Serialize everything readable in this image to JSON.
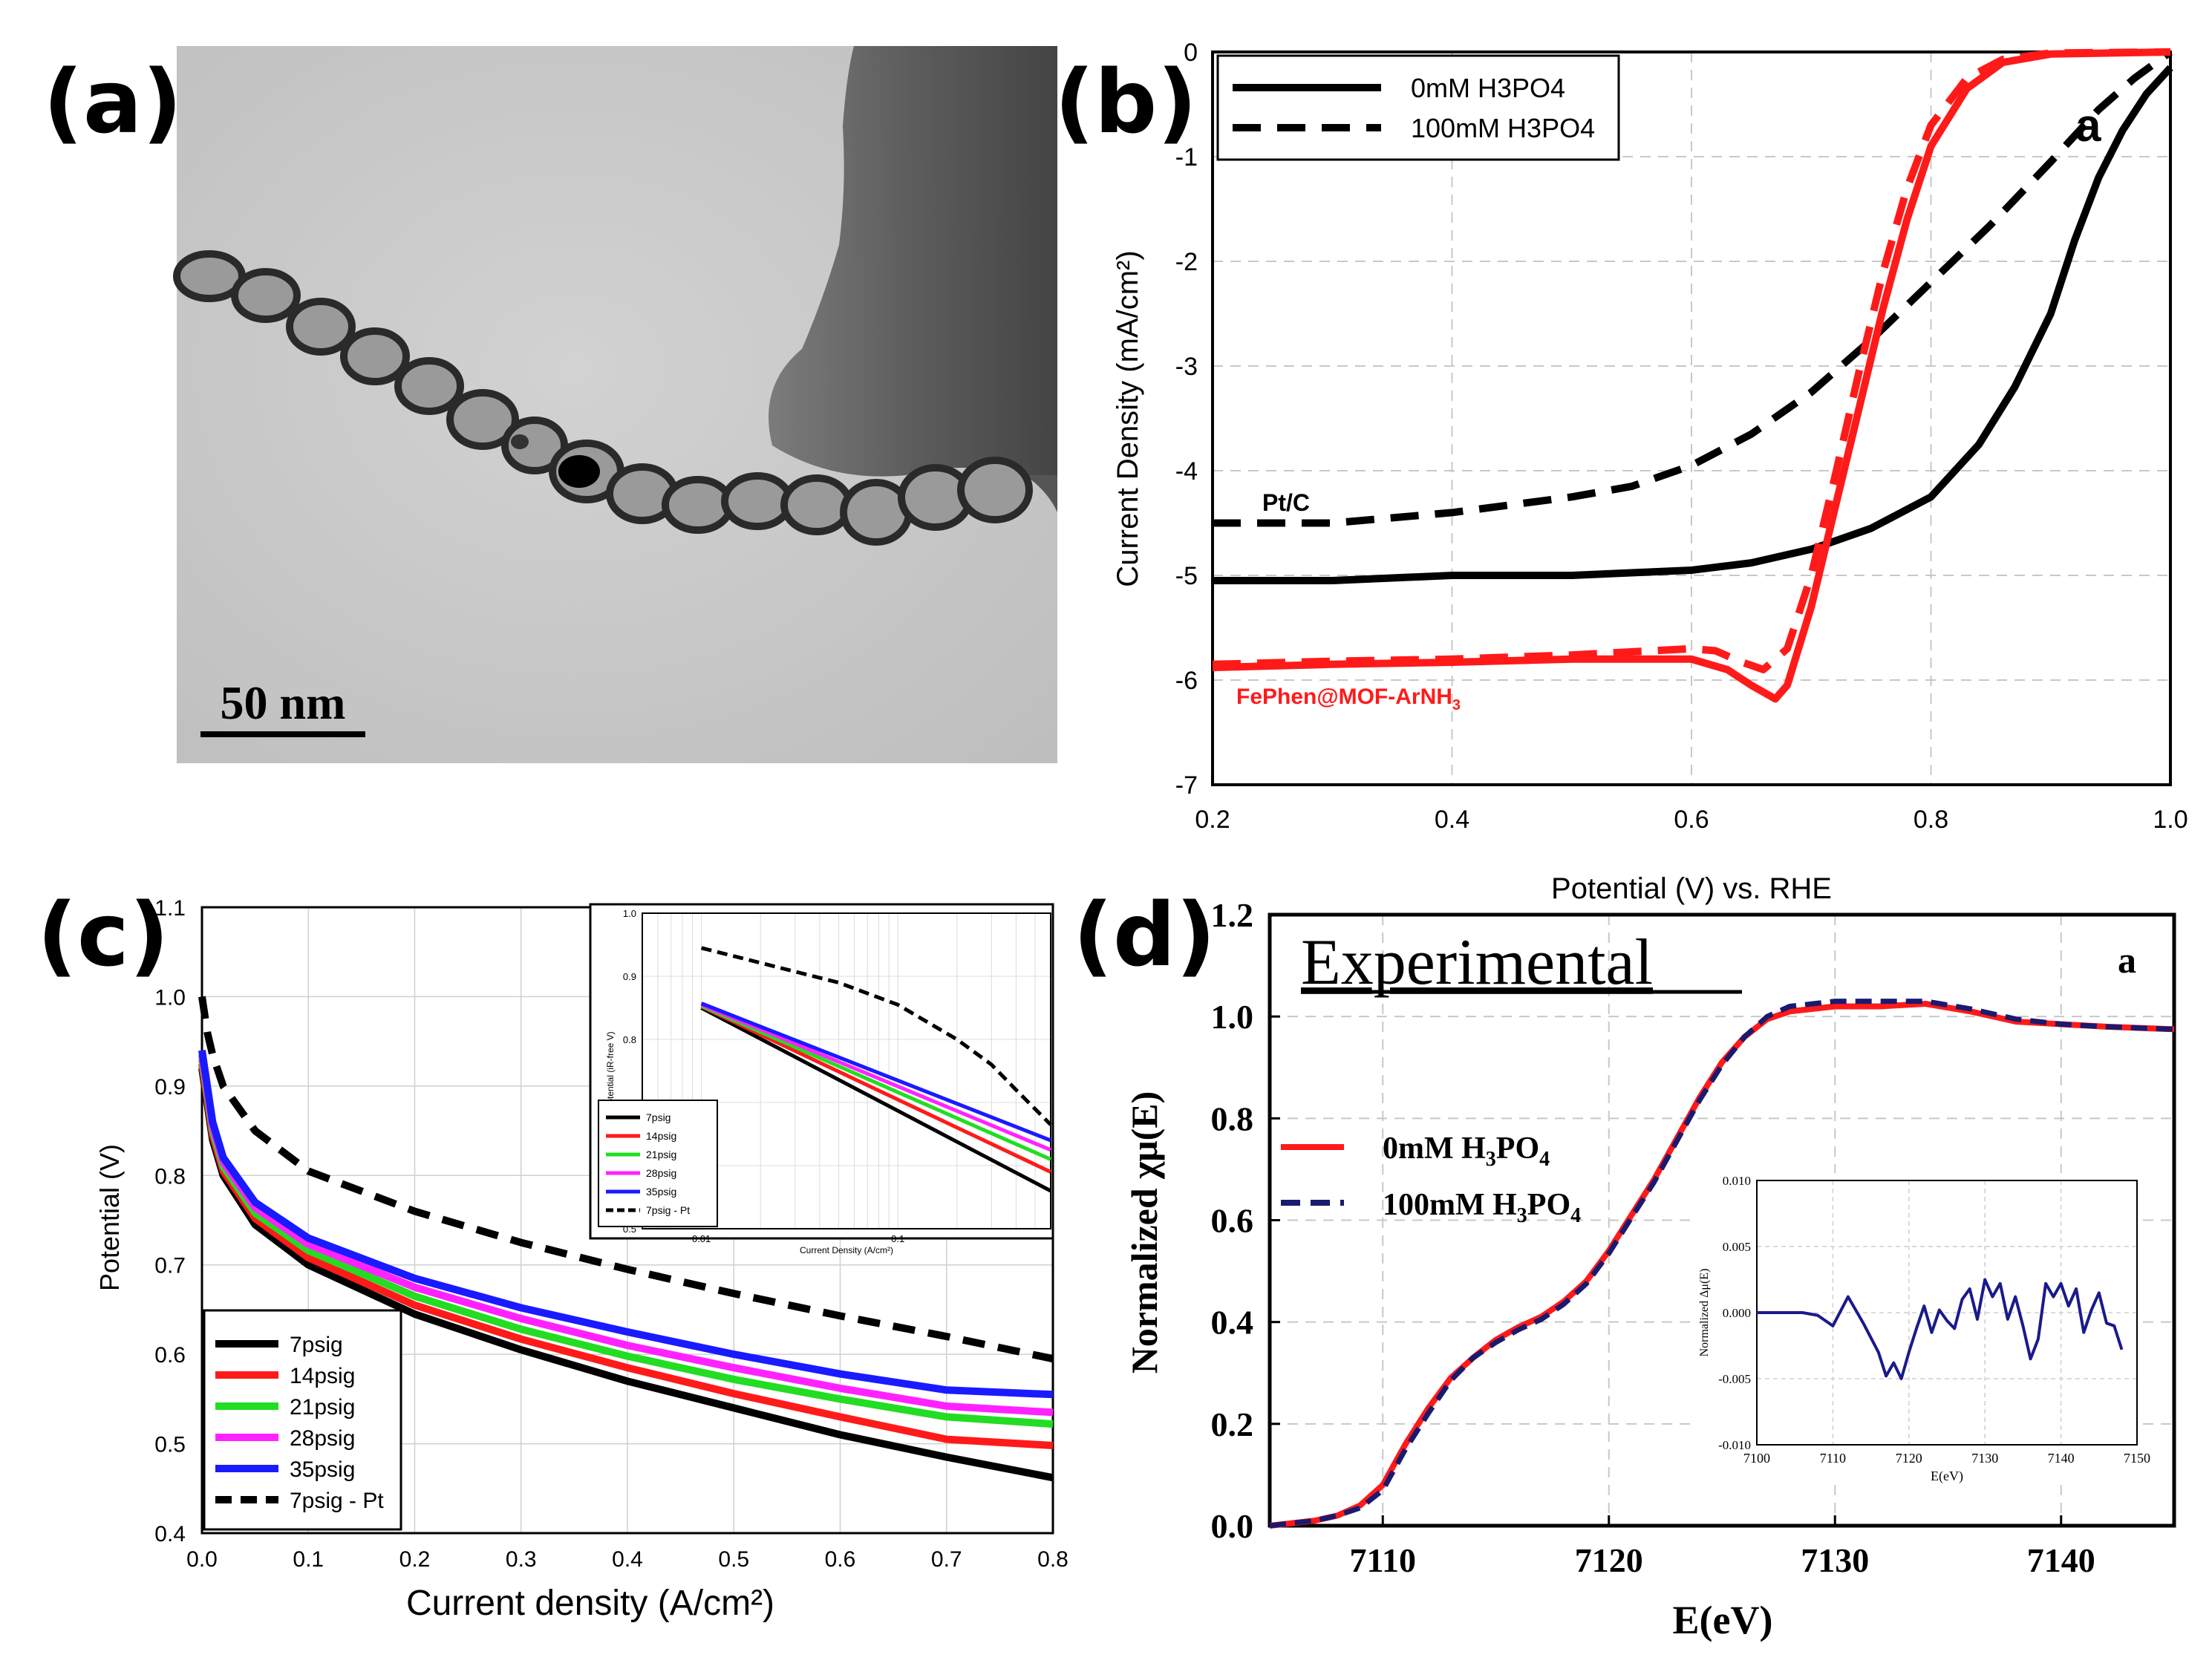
{
  "panel_labels": [
    "(a)",
    "(b)",
    "(c)",
    "(d)"
  ],
  "tem": {
    "scale_bar_label": "50 nm"
  },
  "chart_data": [
    {
      "id": "b",
      "type": "line",
      "xlabel": "Potential (V) vs. RHE",
      "ylabel": "Current Density (mA/cm²)",
      "xlim": [
        0.2,
        1.0
      ],
      "ylim": [
        -7,
        0
      ],
      "xticks": [
        "0.2",
        "0.4",
        "0.6",
        "0.8",
        "1.0"
      ],
      "yticks": [
        "0",
        "-1",
        "-2",
        "-3",
        "-4",
        "-5",
        "-6",
        "-7"
      ],
      "legend": [
        {
          "label": "0mM H3PO4",
          "style": "solid"
        },
        {
          "label": "100mM H3PO4",
          "style": "dashed"
        }
      ],
      "annotations": {
        "corner": "a",
        "ptc": "Pt/C",
        "fephen": "FePhen@MOF-ArNH",
        "fephen_sub": "3"
      },
      "colors": {
        "ptc": "#000000",
        "fephen": "#ff1a1a"
      },
      "series": [
        {
          "name": "Pt/C 0mM H3PO4",
          "color": "#000000",
          "style": "solid",
          "x": [
            0.2,
            0.3,
            0.4,
            0.5,
            0.6,
            0.65,
            0.7,
            0.75,
            0.8,
            0.84,
            0.87,
            0.9,
            0.92,
            0.94,
            0.96,
            0.98,
            1.0
          ],
          "y": [
            -5.05,
            -5.05,
            -5.0,
            -5.0,
            -4.95,
            -4.88,
            -4.75,
            -4.55,
            -4.25,
            -3.75,
            -3.2,
            -2.5,
            -1.8,
            -1.2,
            -0.75,
            -0.4,
            -0.15
          ]
        },
        {
          "name": "Pt/C 100mM H3PO4",
          "color": "#000000",
          "style": "dashed",
          "x": [
            0.2,
            0.3,
            0.4,
            0.5,
            0.55,
            0.6,
            0.65,
            0.7,
            0.75,
            0.8,
            0.85,
            0.9,
            0.94,
            0.97,
            1.0
          ],
          "y": [
            -4.5,
            -4.5,
            -4.4,
            -4.25,
            -4.15,
            -3.95,
            -3.65,
            -3.25,
            -2.75,
            -2.2,
            -1.65,
            -1.05,
            -0.55,
            -0.25,
            0.0
          ]
        },
        {
          "name": "FePhen@MOF-ArNH3 0mM H3PO4",
          "color": "#ff1a1a",
          "style": "solid",
          "x": [
            0.2,
            0.3,
            0.4,
            0.5,
            0.6,
            0.63,
            0.65,
            0.67,
            0.68,
            0.7,
            0.72,
            0.74,
            0.76,
            0.78,
            0.8,
            0.83,
            0.86,
            0.9,
            1.0
          ],
          "y": [
            -5.88,
            -5.85,
            -5.83,
            -5.8,
            -5.8,
            -5.9,
            -6.05,
            -6.18,
            -6.05,
            -5.3,
            -4.35,
            -3.4,
            -2.45,
            -1.6,
            -0.9,
            -0.35,
            -0.1,
            -0.02,
            0.0
          ]
        },
        {
          "name": "FePhen@MOF-ArNH3 100mM H3PO4",
          "color": "#ff1a1a",
          "style": "dashed",
          "x": [
            0.2,
            0.3,
            0.4,
            0.5,
            0.6,
            0.62,
            0.64,
            0.66,
            0.68,
            0.7,
            0.72,
            0.74,
            0.76,
            0.78,
            0.8,
            0.83,
            0.86,
            0.9,
            1.0
          ],
          "y": [
            -5.85,
            -5.82,
            -5.8,
            -5.76,
            -5.7,
            -5.72,
            -5.82,
            -5.9,
            -5.7,
            -5.0,
            -4.05,
            -3.05,
            -2.1,
            -1.3,
            -0.7,
            -0.25,
            -0.07,
            -0.01,
            0.0
          ]
        }
      ]
    },
    {
      "id": "c",
      "type": "line",
      "xlabel": "Current density (A/cm²)",
      "ylabel": "Potential (V)",
      "xlim": [
        0.0,
        0.8
      ],
      "ylim": [
        0.4,
        1.1
      ],
      "xticks": [
        "0.0",
        "0.1",
        "0.2",
        "0.3",
        "0.4",
        "0.5",
        "0.6",
        "0.7",
        "0.8"
      ],
      "yticks": [
        "0.4",
        "0.5",
        "0.6",
        "0.7",
        "0.8",
        "0.9",
        "1.0",
        "1.1"
      ],
      "series": [
        {
          "name": "7psig",
          "color": "#000000",
          "style": "solid",
          "x": [
            0.0,
            0.01,
            0.02,
            0.05,
            0.1,
            0.2,
            0.3,
            0.4,
            0.5,
            0.6,
            0.7,
            0.8
          ],
          "y": [
            0.92,
            0.84,
            0.8,
            0.745,
            0.7,
            0.645,
            0.605,
            0.57,
            0.54,
            0.51,
            0.485,
            0.462
          ]
        },
        {
          "name": "14psig",
          "color": "#ff1a1a",
          "style": "solid",
          "x": [
            0.0,
            0.01,
            0.02,
            0.05,
            0.1,
            0.2,
            0.3,
            0.4,
            0.5,
            0.6,
            0.7,
            0.8
          ],
          "y": [
            0.925,
            0.845,
            0.805,
            0.752,
            0.708,
            0.655,
            0.617,
            0.585,
            0.556,
            0.53,
            0.505,
            0.498
          ]
        },
        {
          "name": "21psig",
          "color": "#22dd22",
          "style": "solid",
          "x": [
            0.0,
            0.01,
            0.02,
            0.05,
            0.1,
            0.2,
            0.3,
            0.4,
            0.5,
            0.6,
            0.7,
            0.8
          ],
          "y": [
            0.93,
            0.85,
            0.81,
            0.758,
            0.716,
            0.665,
            0.628,
            0.598,
            0.572,
            0.55,
            0.53,
            0.522
          ]
        },
        {
          "name": "28psig",
          "color": "#ff22ff",
          "style": "solid",
          "x": [
            0.0,
            0.01,
            0.02,
            0.05,
            0.1,
            0.2,
            0.3,
            0.4,
            0.5,
            0.6,
            0.7,
            0.8
          ],
          "y": [
            0.935,
            0.855,
            0.815,
            0.764,
            0.723,
            0.675,
            0.64,
            0.61,
            0.585,
            0.562,
            0.542,
            0.535
          ]
        },
        {
          "name": "35psig",
          "color": "#1a1aff",
          "style": "solid",
          "x": [
            0.0,
            0.01,
            0.02,
            0.05,
            0.1,
            0.2,
            0.3,
            0.4,
            0.5,
            0.6,
            0.7,
            0.8
          ],
          "y": [
            0.94,
            0.86,
            0.82,
            0.77,
            0.73,
            0.685,
            0.652,
            0.625,
            0.6,
            0.578,
            0.56,
            0.555
          ]
        },
        {
          "name": "7psig - Pt",
          "color": "#000000",
          "style": "dashed",
          "x": [
            0.0,
            0.005,
            0.01,
            0.02,
            0.05,
            0.1,
            0.2,
            0.3,
            0.4,
            0.5,
            0.6,
            0.7,
            0.8
          ],
          "y": [
            1.0,
            0.96,
            0.935,
            0.9,
            0.85,
            0.805,
            0.76,
            0.725,
            0.695,
            0.668,
            0.643,
            0.62,
            0.595
          ]
        }
      ],
      "inset": {
        "type": "line",
        "xscale": "log",
        "xlabel": "Current Density (A/cm²)",
        "ylabel": "Potential (iR-free V)",
        "xlim": [
          0.005,
          0.6
        ],
        "ylim": [
          0.5,
          1.0
        ],
        "xticks": [
          "0.01",
          "0.1"
        ],
        "yticks": [
          "0.5",
          "0.6",
          "0.7",
          "0.8",
          "0.9",
          "1.0"
        ],
        "series": [
          {
            "name": "7psig",
            "color": "#000000",
            "x": [
              0.01,
              0.6
            ],
            "y": [
              0.85,
              0.56
            ]
          },
          {
            "name": "14psig",
            "color": "#ff1a1a",
            "x": [
              0.01,
              0.6
            ],
            "y": [
              0.852,
              0.59
            ]
          },
          {
            "name": "21psig",
            "color": "#22dd22",
            "x": [
              0.01,
              0.6
            ],
            "y": [
              0.853,
              0.61
            ]
          },
          {
            "name": "28psig",
            "color": "#ff22ff",
            "x": [
              0.01,
              0.6
            ],
            "y": [
              0.855,
              0.625
            ]
          },
          {
            "name": "35psig",
            "color": "#1a1aff",
            "x": [
              0.01,
              0.6
            ],
            "y": [
              0.857,
              0.64
            ]
          },
          {
            "name": "7psig - Pt",
            "color": "#000000",
            "x": [
              0.01,
              0.05,
              0.1,
              0.2,
              0.3,
              0.4,
              0.6
            ],
            "y": [
              0.945,
              0.89,
              0.855,
              0.8,
              0.76,
              0.72,
              0.665
            ]
          }
        ]
      }
    },
    {
      "id": "d",
      "type": "line",
      "title": "Experimental",
      "corner": "a",
      "xlabel": "E(eV)",
      "ylabel": "Normalized χμ(E)",
      "xlim": [
        7105,
        7145
      ],
      "ylim": [
        0.0,
        1.2
      ],
      "xticks": [
        "7110",
        "7120",
        "7130",
        "7140"
      ],
      "yticks": [
        "0.0",
        "0.2",
        "0.4",
        "0.6",
        "0.8",
        "1.0",
        "1.2"
      ],
      "legend": [
        {
          "label": "0mM H",
          "sub1": "3",
          "mid": "PO",
          "sub2": "4"
        },
        {
          "label": "100mM H",
          "sub1": "3",
          "mid": "PO",
          "sub2": "4"
        }
      ],
      "series": [
        {
          "name": "0mM H3PO4",
          "color": "#ff1a1a",
          "style": "solid",
          "x": [
            7105,
            7107,
            7108,
            7109,
            7110,
            7111,
            7112,
            7113,
            7114,
            7115,
            7116,
            7117,
            7118,
            7119,
            7120,
            7121,
            7122,
            7123,
            7124,
            7125,
            7126,
            7127,
            7128,
            7130,
            7132,
            7134,
            7136,
            7138,
            7140,
            7142,
            7145
          ],
          "y": [
            0.0,
            0.01,
            0.02,
            0.04,
            0.08,
            0.16,
            0.23,
            0.29,
            0.33,
            0.365,
            0.39,
            0.41,
            0.44,
            0.48,
            0.54,
            0.61,
            0.68,
            0.76,
            0.84,
            0.91,
            0.96,
            0.995,
            1.01,
            1.02,
            1.02,
            1.025,
            1.01,
            0.99,
            0.985,
            0.98,
            0.975
          ]
        },
        {
          "name": "100mM H3PO4",
          "color": "#1a1a6e",
          "style": "dashed",
          "x": [
            7105,
            7107,
            7108,
            7109,
            7110,
            7111,
            7112,
            7113,
            7114,
            7115,
            7116,
            7117,
            7118,
            7119,
            7120,
            7121,
            7122,
            7123,
            7124,
            7125,
            7126,
            7127,
            7128,
            7130,
            7132,
            7134,
            7136,
            7138,
            7140,
            7142,
            7145
          ],
          "y": [
            0.0,
            0.01,
            0.02,
            0.035,
            0.07,
            0.15,
            0.22,
            0.285,
            0.33,
            0.36,
            0.385,
            0.405,
            0.435,
            0.475,
            0.535,
            0.605,
            0.675,
            0.755,
            0.835,
            0.905,
            0.96,
            1.0,
            1.02,
            1.03,
            1.03,
            1.03,
            1.015,
            0.995,
            0.985,
            0.98,
            0.975
          ]
        }
      ],
      "inset": {
        "type": "line",
        "xlabel": "E(eV)",
        "ylabel": "Normalized Δμ(E)",
        "xlim": [
          7100,
          7150
        ],
        "ylim": [
          -0.01,
          0.01
        ],
        "xticks": [
          "7100",
          "7110",
          "7120",
          "7130",
          "7140",
          "7150"
        ],
        "yticks": [
          "0.010",
          "0.005",
          "0.000",
          "-0.005",
          "-0.010"
        ],
        "series": [
          {
            "name": "difference",
            "color": "#1a1a8c",
            "x": [
              7100,
              7104,
              7106,
              7108,
              7110,
              7112,
              7114,
              7116,
              7117,
              7118,
              7119,
              7120,
              7121,
              7122,
              7123,
              7124,
              7125,
              7126,
              7127,
              7128,
              7129,
              7130,
              7131,
              7132,
              7133,
              7134,
              7135,
              7136,
              7137,
              7138,
              7139,
              7140,
              7141,
              7142,
              7143,
              7144,
              7145,
              7146,
              7147,
              7148
            ],
            "y": [
              0.0,
              0.0,
              0.0,
              -0.0002,
              -0.001,
              0.0012,
              -0.0008,
              -0.003,
              -0.0048,
              -0.0038,
              -0.005,
              -0.003,
              -0.0012,
              0.0005,
              -0.0015,
              0.0002,
              -0.0006,
              -0.0012,
              0.001,
              0.0018,
              -0.0005,
              0.0025,
              0.0012,
              0.0022,
              -0.0005,
              0.0012,
              -0.001,
              -0.0035,
              -0.002,
              0.0022,
              0.0012,
              0.0022,
              0.0005,
              0.0018,
              -0.0015,
              0.0002,
              0.0015,
              -0.0008,
              -0.001,
              -0.0028
            ]
          }
        ]
      }
    }
  ]
}
